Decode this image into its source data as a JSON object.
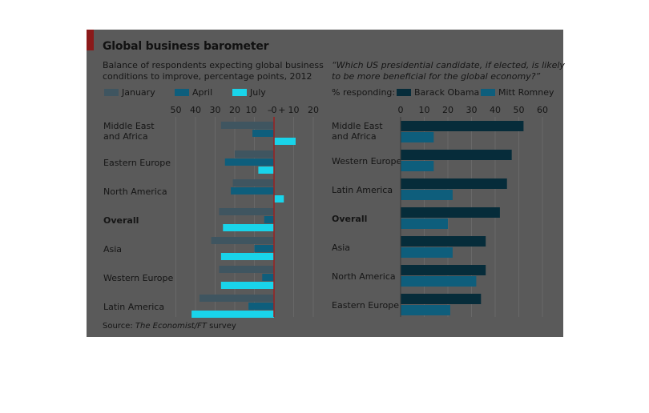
{
  "title": "Global business barometer",
  "source_prefix": "Source: ",
  "source_italic": "The Economist/FT",
  "source_suffix": " survey",
  "colors": {
    "panel": "#5a5a5a",
    "accent": "#8b1a1a",
    "january": "#3f5560",
    "april": "#0e5e7c",
    "july": "#19d4ea",
    "obama": "#062c3a",
    "romney": "#0e5e7c",
    "zero_line": "#9b2020"
  },
  "chart_data": [
    {
      "type": "bar",
      "subtitle_line1": "Balance of respondents expecting global business",
      "subtitle_line2": "conditions to improve, percentage points, 2012",
      "categories": [
        "Middle East\nand Africa",
        "Eastern Europe",
        "North America",
        "Overall",
        "Asia",
        "Western Europe",
        "Latin America"
      ],
      "bold_categories": [
        "Overall"
      ],
      "x_ticks": [
        "50",
        "40",
        "30",
        "20",
        "10",
        "–",
        "0",
        "+",
        "10",
        "20"
      ],
      "xlim": [
        -50,
        20
      ],
      "series": [
        {
          "name": "January",
          "values": [
            -27,
            -20,
            -21,
            -28,
            -32,
            -28,
            -38
          ]
        },
        {
          "name": "April",
          "values": [
            -11,
            -25,
            -22,
            -5,
            -10,
            -6,
            -13
          ]
        },
        {
          "name": "July",
          "values": [
            11,
            -8,
            5,
            -26,
            -27,
            -27,
            -42
          ]
        }
      ]
    },
    {
      "type": "bar",
      "subtitle_line1": "“Which US presidential candidate, if elected, is likely",
      "subtitle_line2": "to be more beneficial for the global economy?”",
      "legend_prefix": "% responding:",
      "categories": [
        "Middle East\nand Africa",
        "Western Europe",
        "Latin America",
        "Overall",
        "Asia",
        "North America",
        "Eastern Europe"
      ],
      "bold_categories": [
        "Overall"
      ],
      "x_ticks": [
        "0",
        "10",
        "20",
        "30",
        "40",
        "50",
        "60"
      ],
      "xlim": [
        0,
        60
      ],
      "series": [
        {
          "name": "Barack Obama",
          "values": [
            52,
            47,
            45,
            42,
            36,
            36,
            34
          ]
        },
        {
          "name": "Mitt Romney",
          "values": [
            14,
            14,
            22,
            20,
            22,
            32,
            21
          ]
        }
      ]
    }
  ]
}
